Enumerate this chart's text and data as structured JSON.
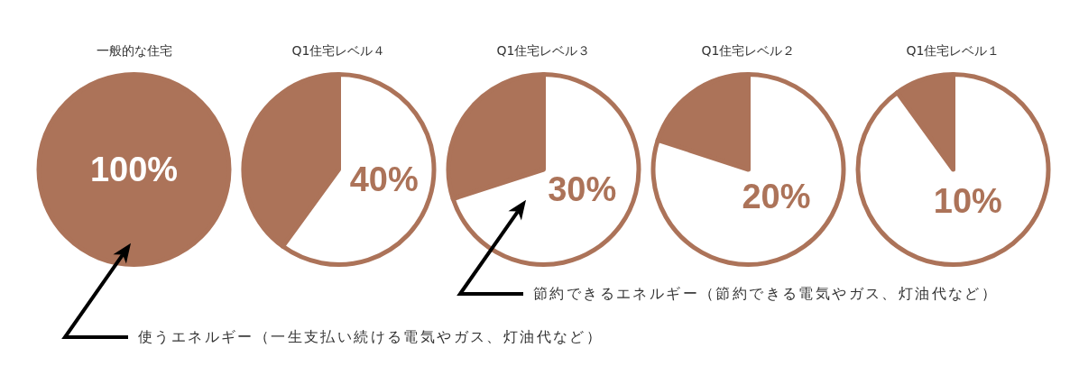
{
  "chart_data": [
    {
      "type": "pie",
      "title": "一般的な住宅",
      "categories": [
        null
      ],
      "values": [
        100
      ],
      "colors": [
        "#ac7359"
      ],
      "value_labels": [
        "100%"
      ],
      "annotations": [
        {
          "text": "使うエネルギー（一生支払い続ける電気やガス、灯油代など）"
        }
      ]
    },
    {
      "type": "pie",
      "title": "Q1住宅レベル４",
      "categories": [
        null,
        null
      ],
      "values": [
        40,
        60
      ],
      "colors": [
        "#ac7359",
        "#ffffff"
      ],
      "annotations": [
        "40%"
      ]
    },
    {
      "type": "pie",
      "title": "Q1住宅レベル３",
      "categories": [
        null,
        null
      ],
      "values": [
        30,
        70
      ],
      "colors": [
        "#ac7359",
        "#ffffff"
      ],
      "annotations": [
        "30%",
        {
          "text": "節約できるエネルギー（節約できる電気やガス、灯油代など）"
        }
      ]
    },
    {
      "type": "pie",
      "title": "Q1住宅レベル２",
      "categories": [
        null,
        null
      ],
      "values": [
        20,
        80
      ],
      "colors": [
        "#ac7359",
        "#ffffff"
      ],
      "annotations": [
        "20%"
      ]
    },
    {
      "type": "pie",
      "title": "Q1住宅レベル１",
      "categories": [
        null,
        null
      ],
      "values": [
        10,
        90
      ],
      "colors": [
        "#ac7359",
        "#ffffff"
      ],
      "annotations": [
        "10%"
      ]
    }
  ]
}
